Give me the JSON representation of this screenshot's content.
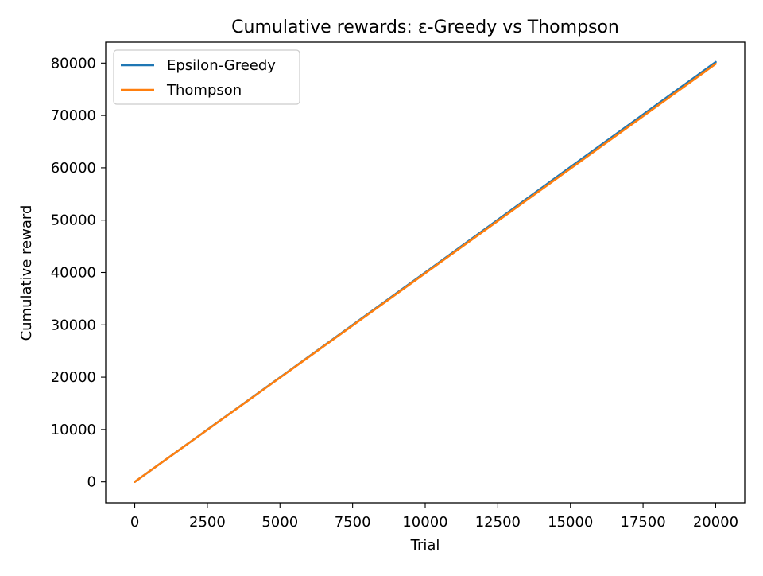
{
  "chart_data": {
    "type": "line",
    "title": "Cumulative rewards: ε-Greedy vs Thompson",
    "xlabel": "Trial",
    "ylabel": "Cumulative reward",
    "xlim": [
      -1000,
      21000
    ],
    "ylim": [
      -4000,
      84000
    ],
    "xticks": [
      0,
      2500,
      5000,
      7500,
      10000,
      12500,
      15000,
      17500,
      20000
    ],
    "yticks": [
      0,
      10000,
      20000,
      30000,
      40000,
      50000,
      60000,
      70000,
      80000
    ],
    "grid": false,
    "legend_position": "upper-left",
    "series": [
      {
        "name": "Epsilon-Greedy",
        "color": "#1f77b4",
        "x": [
          0,
          5000,
          10000,
          15000,
          20000
        ],
        "y": [
          0,
          19950,
          40000,
          60150,
          80200
        ]
      },
      {
        "name": "Thompson",
        "color": "#ff7f0e",
        "x": [
          0,
          5000,
          10000,
          15000,
          20000
        ],
        "y": [
          0,
          19900,
          39850,
          59850,
          79850
        ]
      }
    ]
  }
}
